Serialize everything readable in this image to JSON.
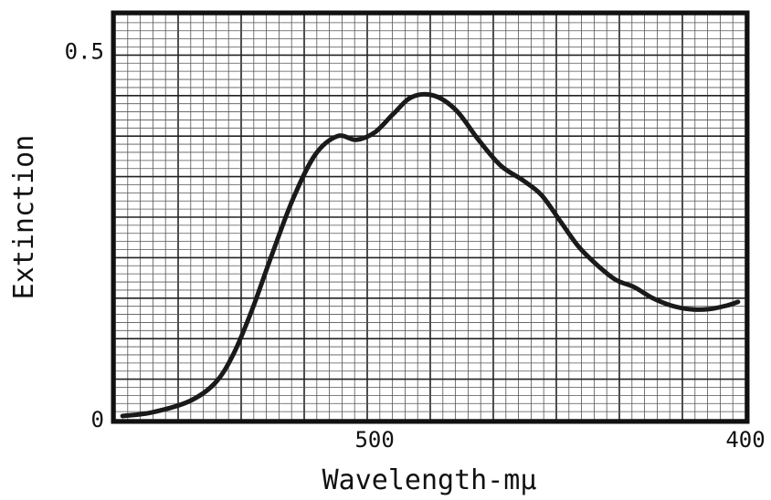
{
  "chart_data": {
    "type": "line",
    "title": "",
    "xlabel": "Wavelength-mμ",
    "ylabel": "Extinction",
    "xlim": [
      570,
      400
    ],
    "ylim": [
      0,
      0.55
    ],
    "x_reversed": true,
    "grid": true,
    "x_ticks": [
      {
        "value": 500,
        "label": "500"
      },
      {
        "value": 400,
        "label": "400"
      }
    ],
    "y_ticks": [
      {
        "value": 0,
        "label": "0"
      },
      {
        "value": 0.5,
        "label": "0.5"
      }
    ],
    "series": [
      {
        "x": [
          568,
          560,
          550,
          543,
          538,
          533,
          528,
          522,
          516,
          510,
          505,
          500,
          495,
          490,
          484,
          478,
          472,
          466,
          460,
          455,
          450,
          445,
          440,
          435,
          430,
          425,
          420,
          415,
          410,
          405,
          402
        ],
        "y": [
          0.005,
          0.01,
          0.025,
          0.05,
          0.09,
          0.15,
          0.22,
          0.3,
          0.36,
          0.385,
          0.38,
          0.39,
          0.415,
          0.438,
          0.44,
          0.42,
          0.38,
          0.345,
          0.325,
          0.305,
          0.27,
          0.235,
          0.21,
          0.19,
          0.18,
          0.165,
          0.155,
          0.15,
          0.15,
          0.155,
          0.16
        ]
      }
    ],
    "colors": {
      "line": "#1a1a1a",
      "grid": "#444444",
      "frame": "#111111",
      "background": "#ffffff"
    }
  }
}
